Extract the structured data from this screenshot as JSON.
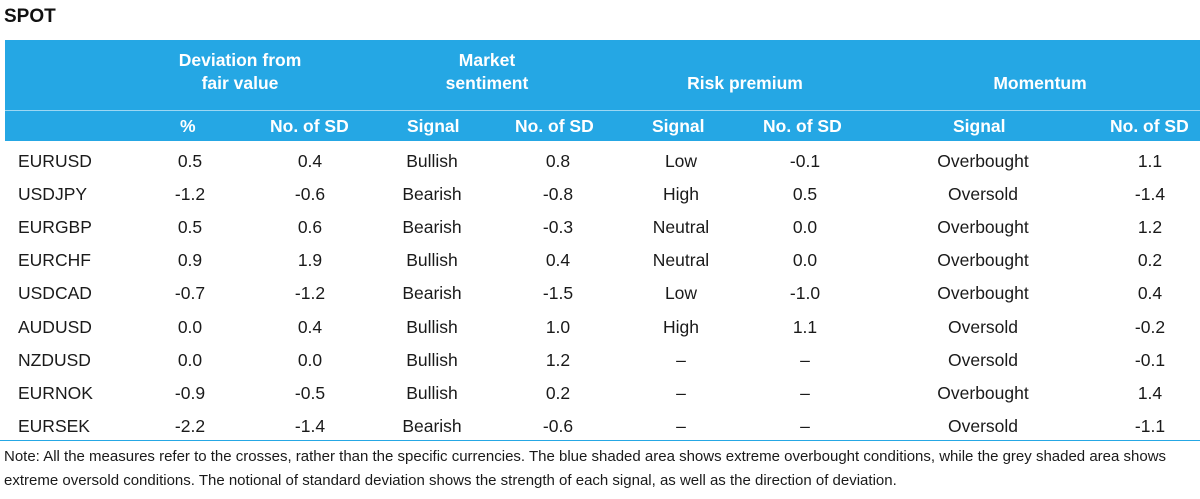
{
  "title": "SPOT",
  "header": {
    "groups": {
      "deviation": "Deviation from fair value",
      "sentiment": "Market sentiment",
      "risk": "Risk premium",
      "momentum": "Momentum"
    },
    "columns": {
      "pct": "%",
      "dev_sd": "No. of SD",
      "sent_signal": "Signal",
      "sent_sd": "No. of SD",
      "risk_signal": "Signal",
      "risk_sd": "No. of SD",
      "mom_signal": "Signal",
      "mom_sd": "No. of SD"
    }
  },
  "rows": [
    {
      "pair": "EURUSD",
      "pct": "0.5",
      "dev_sd": "0.4",
      "sent_signal": "Bullish",
      "sent_sd": "0.8",
      "risk_signal": "Low",
      "risk_sd": "-0.1",
      "mom_signal": "Overbought",
      "mom_sd": "1.1"
    },
    {
      "pair": "USDJPY",
      "pct": "-1.2",
      "dev_sd": "-0.6",
      "sent_signal": "Bearish",
      "sent_sd": "-0.8",
      "risk_signal": "High",
      "risk_sd": "0.5",
      "mom_signal": "Oversold",
      "mom_sd": "-1.4"
    },
    {
      "pair": "EURGBP",
      "pct": "0.5",
      "dev_sd": "0.6",
      "sent_signal": "Bearish",
      "sent_sd": "-0.3",
      "risk_signal": "Neutral",
      "risk_sd": "0.0",
      "mom_signal": "Overbought",
      "mom_sd": "1.2"
    },
    {
      "pair": "EURCHF",
      "pct": "0.9",
      "dev_sd": "1.9",
      "sent_signal": "Bullish",
      "sent_sd": "0.4",
      "risk_signal": "Neutral",
      "risk_sd": "0.0",
      "mom_signal": "Overbought",
      "mom_sd": "0.2"
    },
    {
      "pair": "USDCAD",
      "pct": "-0.7",
      "dev_sd": "-1.2",
      "sent_signal": "Bearish",
      "sent_sd": "-1.5",
      "risk_signal": "Low",
      "risk_sd": "-1.0",
      "mom_signal": "Overbought",
      "mom_sd": "0.4"
    },
    {
      "pair": "AUDUSD",
      "pct": "0.0",
      "dev_sd": "0.4",
      "sent_signal": "Bullish",
      "sent_sd": "1.0",
      "risk_signal": "High",
      "risk_sd": "1.1",
      "mom_signal": "Oversold",
      "mom_sd": "-0.2"
    },
    {
      "pair": "NZDUSD",
      "pct": "0.0",
      "dev_sd": "0.0",
      "sent_signal": "Bullish",
      "sent_sd": "1.2",
      "risk_signal": "–",
      "risk_sd": "–",
      "mom_signal": "Oversold",
      "mom_sd": "-0.1"
    },
    {
      "pair": "EURNOK",
      "pct": "-0.9",
      "dev_sd": "-0.5",
      "sent_signal": "Bullish",
      "sent_sd": "0.2",
      "risk_signal": "–",
      "risk_sd": "–",
      "mom_signal": "Overbought",
      "mom_sd": "1.4"
    },
    {
      "pair": "EURSEK",
      "pct": "-2.2",
      "dev_sd": "-1.4",
      "sent_signal": "Bearish",
      "sent_sd": "-0.6",
      "risk_signal": "–",
      "risk_sd": "–",
      "mom_signal": "Oversold",
      "mom_sd": "-1.1"
    }
  ],
  "note": "Note: All the measures refer to the crosses, rather than the specific currencies. The blue shaded area shows extreme overbought conditions, while the grey shaded area shows extreme oversold conditions. The notional of standard deviation shows the strength of each signal, as well as the direction of deviation.",
  "colors": {
    "header_bg": "#25a7e4",
    "header_text": "#ffffff"
  }
}
